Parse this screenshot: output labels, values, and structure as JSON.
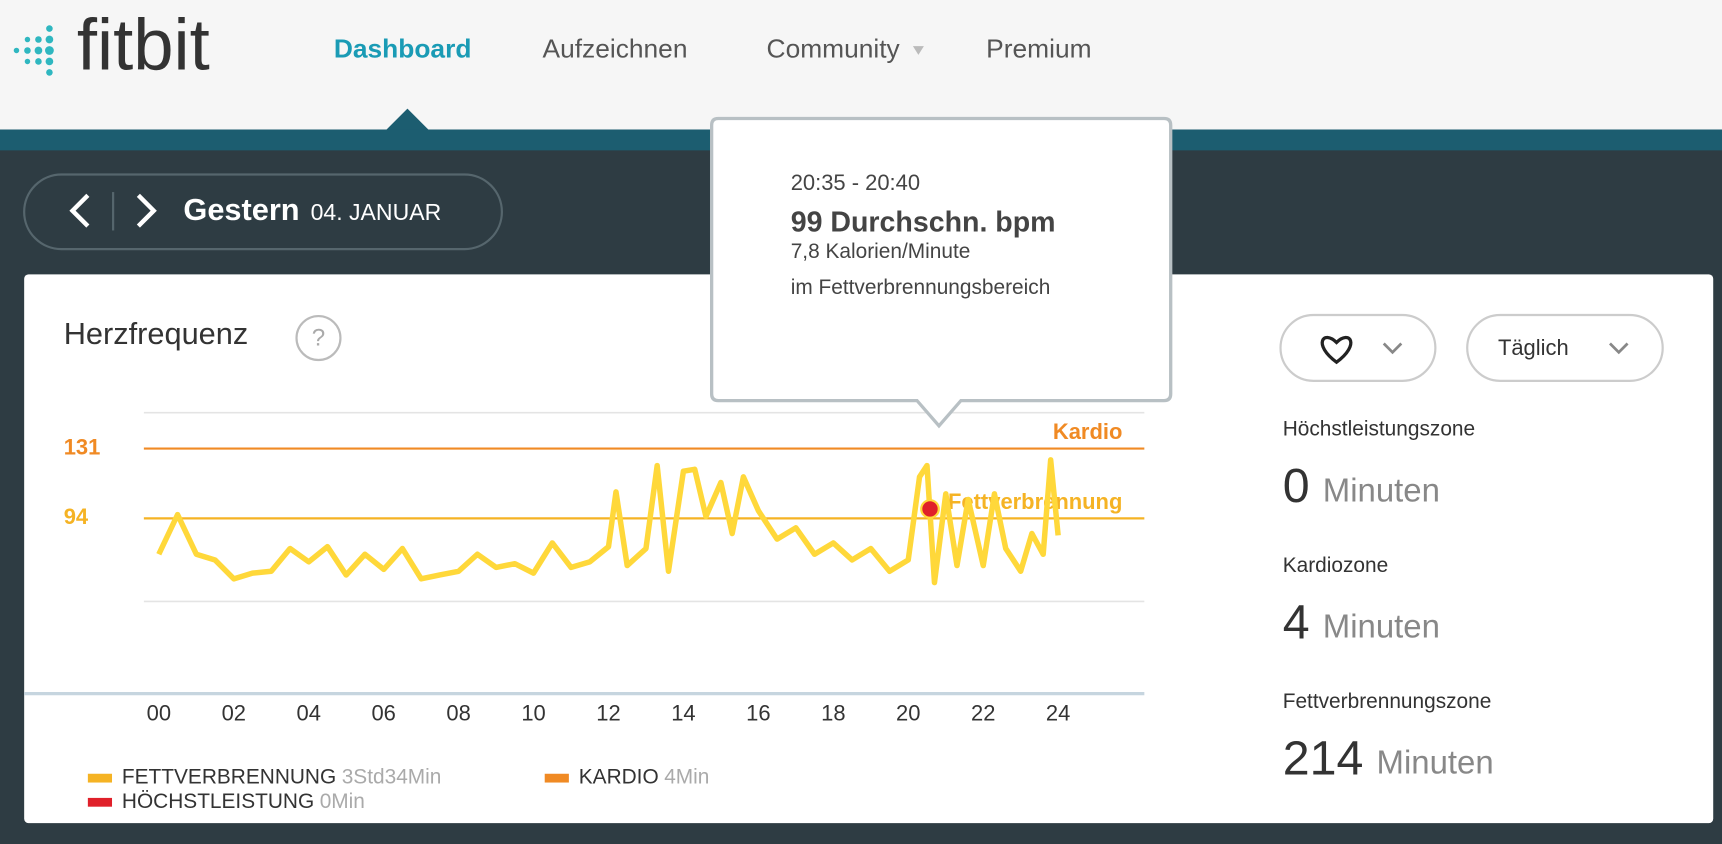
{
  "logo": "fitbit",
  "nav": [
    {
      "label": "Dashboard",
      "active": true
    },
    {
      "label": "Aufzeichnen"
    },
    {
      "label": "Community",
      "dropdown": true
    },
    {
      "label": "Premium"
    }
  ],
  "date": {
    "day": "Gestern",
    "date": "04. JANUAR"
  },
  "panel": {
    "title": "Herzfrequenz",
    "help": "?",
    "period": "Täglich"
  },
  "tooltip": {
    "time": "20:35 - 20:40",
    "bpm": "99 Durchschn. bpm",
    "calories": "7,8 Kalorien/Minute",
    "zone": "im Fettverbrennungsbereich"
  },
  "stats": [
    {
      "label": "Höchstleistungszone",
      "value": 0,
      "unit": "Minuten"
    },
    {
      "label": "Kardiozone",
      "value": 4,
      "unit": "Minuten"
    },
    {
      "label": "Fettverbrennungszone",
      "value": 214,
      "unit": "Minuten"
    }
  ],
  "legend": [
    {
      "name": "FETTVERBRENNUNG",
      "time": "3Std34Min",
      "color": "#f5b324"
    },
    {
      "name": "KARDIO",
      "time": "4Min",
      "color": "#f08a24"
    },
    {
      "name": "HÖCHSTLEISTUNG",
      "time": "0Min",
      "color": "#e0202a"
    }
  ],
  "chart_data": {
    "type": "line",
    "color": "#ffd83a",
    "x": [
      0,
      0.5,
      1,
      1.5,
      2,
      2.5,
      3,
      3.5,
      4,
      4.5,
      5,
      5.5,
      6,
      6.5,
      7,
      7.5,
      8,
      8.5,
      9,
      9.5,
      10,
      10.5,
      11,
      11.5,
      12,
      12.2,
      12.5,
      13,
      13.3,
      13.6,
      14,
      14.3,
      14.6,
      15,
      15.3,
      15.6,
      16,
      16.5,
      17,
      17.5,
      18,
      18.5,
      19,
      19.5,
      20,
      20.3,
      20.5,
      20.7,
      21,
      21.3,
      21.6,
      22,
      22.3,
      22.6,
      23,
      23.3,
      23.6,
      23.8,
      24
    ],
    "values": [
      75,
      96,
      75,
      72,
      62,
      65,
      66,
      78,
      71,
      79,
      64,
      75,
      67,
      78,
      62,
      64,
      66,
      75,
      68,
      70,
      65,
      81,
      68,
      71,
      79,
      108,
      69,
      78,
      122,
      66,
      119,
      120,
      95,
      113,
      86,
      116,
      98,
      83,
      89,
      75,
      81,
      72,
      78,
      66,
      72,
      116,
      122,
      60,
      107,
      69,
      104,
      69,
      107,
      78,
      66,
      86,
      75,
      125,
      85
    ],
    "highlight": {
      "x": 20.58,
      "value": 99,
      "color": "#e0202a"
    },
    "xlim": [
      -0.4,
      26.3
    ],
    "xticks": [
      {
        "value": 0,
        "label": "00"
      },
      {
        "value": 2,
        "label": "02"
      },
      {
        "value": 4,
        "label": "04"
      },
      {
        "value": 6,
        "label": "06"
      },
      {
        "value": 8,
        "label": "08"
      },
      {
        "value": 10,
        "label": "10"
      },
      {
        "value": 12,
        "label": "12"
      },
      {
        "value": 14,
        "label": "14"
      },
      {
        "value": 16,
        "label": "16"
      },
      {
        "value": 18,
        "label": "18"
      },
      {
        "value": 20,
        "label": "20"
      },
      {
        "value": 22,
        "label": "22"
      },
      {
        "value": 24,
        "label": "24"
      }
    ],
    "ylim": [
      50,
      150
    ],
    "yticks": [
      94,
      131
    ],
    "zones": [
      {
        "name": "Fettverbrennung",
        "color": "#f5b324"
      },
      {
        "name": "Kardio",
        "color": "#f08a24"
      }
    ]
  }
}
